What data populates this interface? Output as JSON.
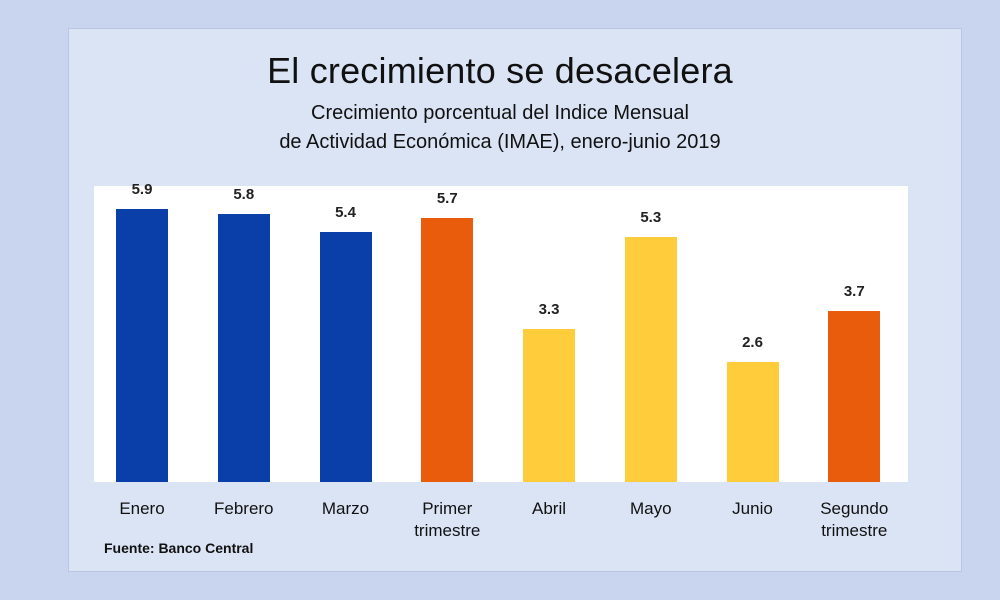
{
  "chart_data": {
    "type": "bar",
    "title": "El crecimiento se desacelera",
    "subtitle": [
      "Crecimiento porcentual del Indice Mensual",
      "de Actividad Económica (IMAE), enero-junio 2019"
    ],
    "categories": [
      "Enero",
      "Febrero",
      "Marzo",
      "Primer\ntrimestre",
      "Abril",
      "Mayo",
      "Junio",
      "Segundo\ntrimestre"
    ],
    "values": [
      5.9,
      5.8,
      5.4,
      5.7,
      3.3,
      5.3,
      2.6,
      3.7
    ],
    "value_labels": [
      "5.9",
      "5.8",
      "5.4",
      "5.7",
      "3.3",
      "5.3",
      "2.6",
      "3.7"
    ],
    "colors": [
      "#0a3faa",
      "#0a3faa",
      "#0a3faa",
      "#e85c0c",
      "#ffcd3c",
      "#ffcd3c",
      "#ffcd3c",
      "#e85c0c"
    ],
    "ylim": [
      0,
      6.4
    ],
    "grid": false,
    "legend": "none",
    "xlabel": "",
    "ylabel": ""
  },
  "source": "Fuente: Banco Central"
}
